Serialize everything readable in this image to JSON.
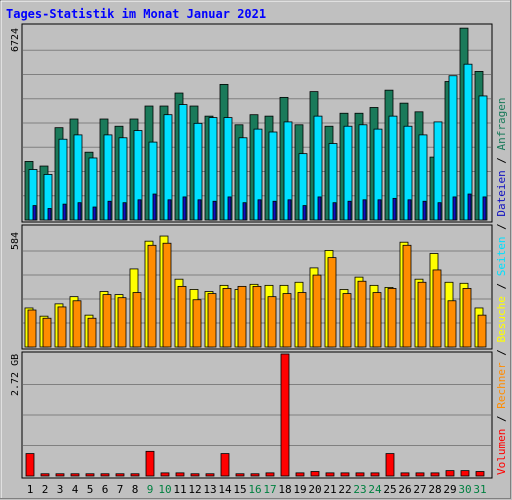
{
  "chart_data": {
    "type": "bar",
    "title": "Tages-Statistik im Monat Januar 2021",
    "categories": [
      "1",
      "2",
      "3",
      "4",
      "5",
      "6",
      "7",
      "8",
      "9",
      "10",
      "11",
      "12",
      "13",
      "14",
      "15",
      "16",
      "17",
      "18",
      "19",
      "20",
      "21",
      "22",
      "23",
      "24",
      "25",
      "26",
      "27",
      "28",
      "29",
      "30",
      "31"
    ],
    "weekend_days": [
      "9",
      "10",
      "16",
      "17",
      "23",
      "24",
      "30",
      "31"
    ],
    "colors": {
      "anfragen": "#1a7a5a",
      "seiten": "#00e0ff",
      "dateien": "#1010c0",
      "besuche": "#ffff00",
      "rechner": "#ff8c00",
      "volumen": "#ff0000",
      "weekend_label": "#008040",
      "title": "#0000ff"
    },
    "panels": [
      {
        "id": "top",
        "ymax_label": "6724",
        "ymax": 6724,
        "series": [
          {
            "key": "anfragen",
            "values": [
              2030,
              1870,
              3200,
              3500,
              2350,
              3500,
              3250,
              3500,
              3950,
              3950,
              4400,
              3950,
              3600,
              4700,
              3300,
              3650,
              3600,
              4250,
              3300,
              4450,
              3250,
              3700,
              3700,
              3900,
              4500,
              4050,
              3750,
              2180,
              4800,
              6650,
              5150
            ]
          },
          {
            "key": "seiten",
            "values": [
              1750,
              1580,
              2800,
              2950,
              2150,
              2950,
              2850,
              3100,
              2700,
              3650,
              4000,
              3350,
              3550,
              3550,
              2850,
              3150,
              3050,
              3400,
              2300,
              3600,
              2650,
              3250,
              3300,
              3150,
              3600,
              3250,
              2950,
              3400,
              5000,
              5400,
              4300
            ]
          },
          {
            "key": "dateien",
            "values": [
              500,
              400,
              550,
              600,
              450,
              650,
              600,
              700,
              900,
              700,
              800,
              700,
              650,
              800,
              600,
              700,
              650,
              700,
              500,
              800,
              600,
              650,
              700,
              700,
              750,
              700,
              650,
              600,
              800,
              900,
              800
            ]
          }
        ]
      },
      {
        "id": "middle",
        "ymax_label": "584",
        "ymax": 584,
        "series": [
          {
            "key": "besuche",
            "values": [
              190,
              150,
              210,
              245,
              155,
              270,
              255,
              380,
              515,
              540,
              330,
              280,
              270,
              300,
              280,
              305,
              300,
              300,
              315,
              385,
              470,
              280,
              340,
              300,
              290,
              510,
              330,
              455,
              315,
              310,
              190
            ]
          },
          {
            "key": "rechner",
            "values": [
              180,
              140,
              195,
              225,
              140,
              255,
              240,
              265,
              495,
              505,
              295,
              230,
              260,
              285,
              295,
              295,
              245,
              260,
              265,
              350,
              435,
              260,
              320,
              265,
              285,
              495,
              315,
              375,
              225,
              285,
              155
            ]
          }
        ]
      },
      {
        "id": "bottom",
        "ymax_label": "2.72 GB",
        "ymax": 2.72,
        "series": [
          {
            "key": "volumen",
            "values": [
              0.5,
              0.05,
              0.05,
              0.05,
              0.05,
              0.05,
              0.05,
              0.05,
              0.55,
              0.07,
              0.07,
              0.05,
              0.05,
              0.5,
              0.05,
              0.05,
              0.07,
              2.72,
              0.07,
              0.1,
              0.07,
              0.07,
              0.07,
              0.07,
              0.5,
              0.07,
              0.07,
              0.07,
              0.12,
              0.12,
              0.1
            ]
          }
        ]
      }
    ],
    "side_legend": [
      {
        "text": "Volumen",
        "color": "#ff0000"
      },
      {
        "text": " / ",
        "color": "#000000"
      },
      {
        "text": "Rechner",
        "color": "#ff8c00"
      },
      {
        "text": " / ",
        "color": "#000000"
      },
      {
        "text": "Besuche",
        "color": "#ffff00"
      },
      {
        "text": " / ",
        "color": "#000000"
      },
      {
        "text": "Seiten",
        "color": "#00e0ff"
      },
      {
        "text": " / ",
        "color": "#000000"
      },
      {
        "text": "Dateien",
        "color": "#1010c0"
      },
      {
        "text": " / ",
        "color": "#000000"
      },
      {
        "text": "Anfragen",
        "color": "#1a7a5a"
      }
    ]
  }
}
